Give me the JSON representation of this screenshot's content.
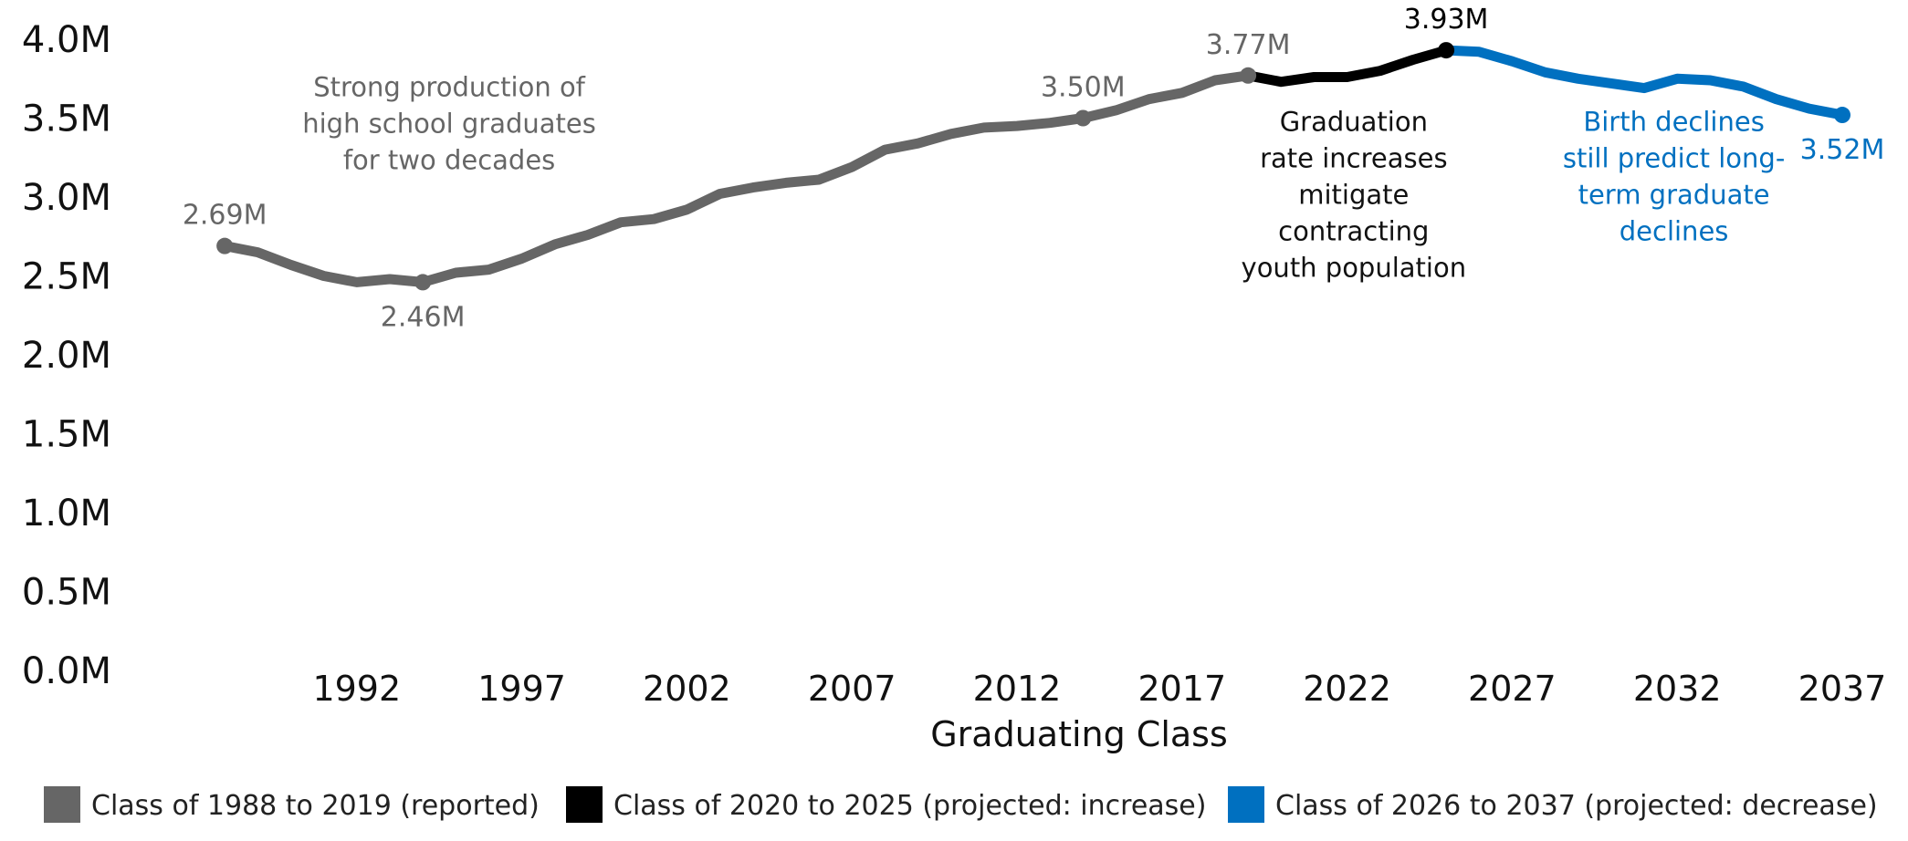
{
  "chart_data": {
    "type": "line",
    "xlabel": "Graduating Class",
    "ylabel": "",
    "ylim": [
      0,
      4000000
    ],
    "xlim": [
      1987,
      2037
    ],
    "y_ticks": [
      {
        "value": 0,
        "label": "0.0M"
      },
      {
        "value": 500000,
        "label": "0.5M"
      },
      {
        "value": 1000000,
        "label": "1.0M"
      },
      {
        "value": 1500000,
        "label": "1.5M"
      },
      {
        "value": 2000000,
        "label": "2.0M"
      },
      {
        "value": 2500000,
        "label": "2.5M"
      },
      {
        "value": 3000000,
        "label": "3.0M"
      },
      {
        "value": 3500000,
        "label": "3.5M"
      },
      {
        "value": 4000000,
        "label": "4.0M"
      }
    ],
    "x_ticks": [
      {
        "value": 1992,
        "label": "1992"
      },
      {
        "value": 1997,
        "label": "1997"
      },
      {
        "value": 2002,
        "label": "2002"
      },
      {
        "value": 2007,
        "label": "2007"
      },
      {
        "value": 2012,
        "label": "2012"
      },
      {
        "value": 2017,
        "label": "2017"
      },
      {
        "value": 2022,
        "label": "2022"
      },
      {
        "value": 2027,
        "label": "2027"
      },
      {
        "value": 2032,
        "label": "2032"
      },
      {
        "value": 2037,
        "label": "2037"
      }
    ],
    "grid": false,
    "legend_position": "bottom",
    "series": [
      {
        "name": "Class of 1988 to 2019 (reported)",
        "color": "#666666",
        "x": [
          1988,
          1989,
          1990,
          1991,
          1992,
          1993,
          1994,
          1995,
          1996,
          1997,
          1998,
          1999,
          2000,
          2001,
          2002,
          2003,
          2004,
          2005,
          2006,
          2007,
          2008,
          2009,
          2010,
          2011,
          2012,
          2013,
          2014,
          2015,
          2016,
          2017,
          2018,
          2019
        ],
        "y": [
          2690000,
          2650000,
          2570000,
          2500000,
          2460000,
          2480000,
          2460000,
          2520000,
          2540000,
          2610000,
          2700000,
          2760000,
          2840000,
          2860000,
          2920000,
          3020000,
          3060000,
          3090000,
          3110000,
          3190000,
          3300000,
          3340000,
          3400000,
          3440000,
          3450000,
          3470000,
          3500000,
          3550000,
          3620000,
          3660000,
          3740000,
          3770000
        ]
      },
      {
        "name": "Class of 2020 to 2025 (projected: increase)",
        "color": "#000000",
        "x": [
          2019,
          2020,
          2021,
          2022,
          2023,
          2024,
          2025
        ],
        "y": [
          3770000,
          3730000,
          3760000,
          3760000,
          3800000,
          3870000,
          3930000
        ]
      },
      {
        "name": "Class of 2026 to 2037 (projected: decrease)",
        "color": "#0070C0",
        "x": [
          2025,
          2026,
          2027,
          2028,
          2029,
          2030,
          2031,
          2032,
          2033,
          2034,
          2035,
          2036,
          2037
        ],
        "y": [
          3930000,
          3920000,
          3860000,
          3790000,
          3750000,
          3720000,
          3690000,
          3750000,
          3740000,
          3700000,
          3620000,
          3560000,
          3520000
        ]
      }
    ],
    "markers": [
      {
        "x": 1988,
        "y": 2690000,
        "color": "#666666",
        "label": "2.69M",
        "label_pos": "above"
      },
      {
        "x": 1994,
        "y": 2460000,
        "color": "#666666",
        "label": "2.46M",
        "label_pos": "below"
      },
      {
        "x": 2014,
        "y": 3500000,
        "color": "#666666",
        "label": "3.50M",
        "label_pos": "above"
      },
      {
        "x": 2019,
        "y": 3770000,
        "color": "#666666",
        "label": "3.77M",
        "label_pos": "above"
      },
      {
        "x": 2025,
        "y": 3930000,
        "color": "#000000",
        "label": "3.93M",
        "label_pos": "above"
      },
      {
        "x": 2037,
        "y": 3520000,
        "color": "#0070C0",
        "label": "3.52M",
        "label_pos": "below"
      }
    ],
    "annotations": [
      {
        "x": 1994.8,
        "y": 3640000,
        "color": "#666666",
        "lines": [
          "Strong production of",
          "high school graduates",
          "for two decades"
        ]
      },
      {
        "x": 2022.2,
        "y": 3420000,
        "color": "#111111",
        "lines": [
          "Graduation",
          "rate increases",
          "mitigate",
          "contracting",
          "youth population"
        ]
      },
      {
        "x": 2031.9,
        "y": 3420000,
        "color": "#0070C0",
        "lines": [
          "Birth declines",
          "still predict long-",
          "term graduate",
          "declines"
        ]
      }
    ]
  }
}
